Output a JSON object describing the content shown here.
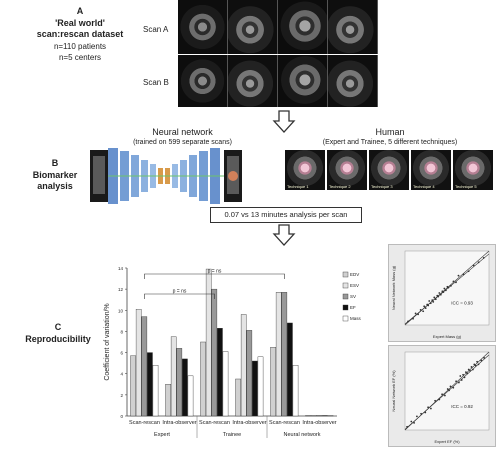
{
  "sections": {
    "a": {
      "letter": "A",
      "title": "'Real world'",
      "subtitle": "scan:rescan dataset",
      "line1": "n=110 patients",
      "line2": "n=5 centers",
      "scan_a": "Scan A",
      "scan_b": "Scan B"
    },
    "b": {
      "letter": "B",
      "title": "Biomarker",
      "subtitle": "analysis",
      "nn_title": "Neural network",
      "nn_sub": "(trained on 599 separate scans)",
      "human_title": "Human",
      "human_sub": "(Expert and Trainee, 5 different techniques)",
      "time_box": "0.07 vs 13 minutes analysis per scan",
      "technique_labels": [
        "Technique 1",
        "Technique 2",
        "Technique 3",
        "Technique 4",
        "Technique 5"
      ]
    },
    "c": {
      "letter": "C",
      "title": "Reproducibility"
    }
  },
  "chart_data": [
    {
      "type": "bar",
      "ylabel": "Coefficient of variation/%",
      "ylim": [
        0,
        14
      ],
      "yticks": [
        0,
        2,
        4,
        6,
        8,
        10,
        12,
        14
      ],
      "categories": [
        "Scan-rescan",
        "Intra-observer",
        "Scan-rescan",
        "Intra-observer",
        "Scan-rescan",
        "Intra-observer"
      ],
      "groups": [
        "Expert",
        "Trainee",
        "Neural network"
      ],
      "series": [
        {
          "name": "EDV",
          "color": "#d0d0d0",
          "values": [
            5.7,
            3.0,
            7.0,
            3.5,
            6.5,
            0.05
          ]
        },
        {
          "name": "ESV",
          "color": "#eeeeee",
          "values": [
            10.1,
            7.5,
            13.9,
            9.6,
            11.7,
            0.05
          ]
        },
        {
          "name": "SV",
          "color": "#999999",
          "values": [
            9.4,
            6.4,
            12.0,
            8.1,
            11.7,
            0.05
          ]
        },
        {
          "name": "EF",
          "color": "#111111",
          "values": [
            6.0,
            5.4,
            8.3,
            5.2,
            8.8,
            0.05
          ]
        },
        {
          "name": "Mass",
          "color": "#ffffff",
          "values": [
            4.8,
            3.8,
            6.1,
            5.6,
            4.8,
            0.05
          ]
        }
      ],
      "annotations": [
        "p = ns",
        "p = ns"
      ]
    },
    {
      "type": "scatter",
      "xlabel": "Expert Mass (g)",
      "ylabel": "Neural Network Mass (g)",
      "annotation": "ICC = 0.93",
      "x": [
        60,
        70,
        75,
        80,
        85,
        90,
        92,
        95,
        98,
        100,
        102,
        105,
        108,
        110,
        112,
        115,
        118,
        120,
        122,
        125,
        128,
        130,
        132,
        135,
        138,
        140,
        145,
        150,
        155,
        160,
        170,
        180,
        190,
        200,
        210
      ],
      "y": [
        62,
        68,
        80,
        78,
        88,
        85,
        96,
        92,
        100,
        98,
        108,
        103,
        110,
        106,
        116,
        112,
        120,
        118,
        126,
        122,
        130,
        128,
        136,
        132,
        140,
        138,
        142,
        152,
        150,
        165,
        168,
        175,
        188,
        195,
        205
      ]
    },
    {
      "type": "scatter",
      "xlabel": "Expert EF (%)",
      "ylabel": "Neural Network EF (%)",
      "annotation": "ICC = 0.92",
      "x": [
        15,
        18,
        20,
        22,
        25,
        28,
        30,
        32,
        35,
        38,
        40,
        42,
        44,
        45,
        46,
        48,
        50,
        52,
        53,
        54,
        55,
        56,
        57,
        58,
        59,
        60,
        61,
        62,
        63,
        64,
        65,
        66,
        68,
        70
      ],
      "y": [
        16,
        20,
        19,
        24,
        26,
        27,
        31,
        30,
        36,
        37,
        41,
        40,
        45,
        44,
        47,
        46,
        51,
        50,
        55,
        52,
        56,
        54,
        58,
        57,
        60,
        59,
        62,
        60,
        64,
        63,
        66,
        64,
        67,
        69
      ]
    }
  ]
}
